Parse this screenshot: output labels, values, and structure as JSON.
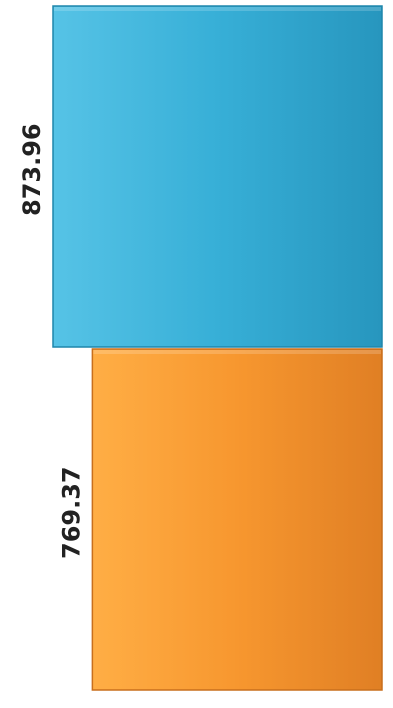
{
  "chart_data": {
    "type": "bar",
    "orientation": "horizontal",
    "categories": [
      "",
      ""
    ],
    "values": [
      873.96,
      769.37
    ],
    "value_labels": [
      "873.96",
      "769.37"
    ],
    "colors": [
      "#2fa9d1",
      "#f3922d"
    ],
    "title": "",
    "xlabel": "",
    "ylabel": "",
    "xlim": [
      0,
      873.96
    ],
    "grid": false,
    "legend": "none"
  }
}
